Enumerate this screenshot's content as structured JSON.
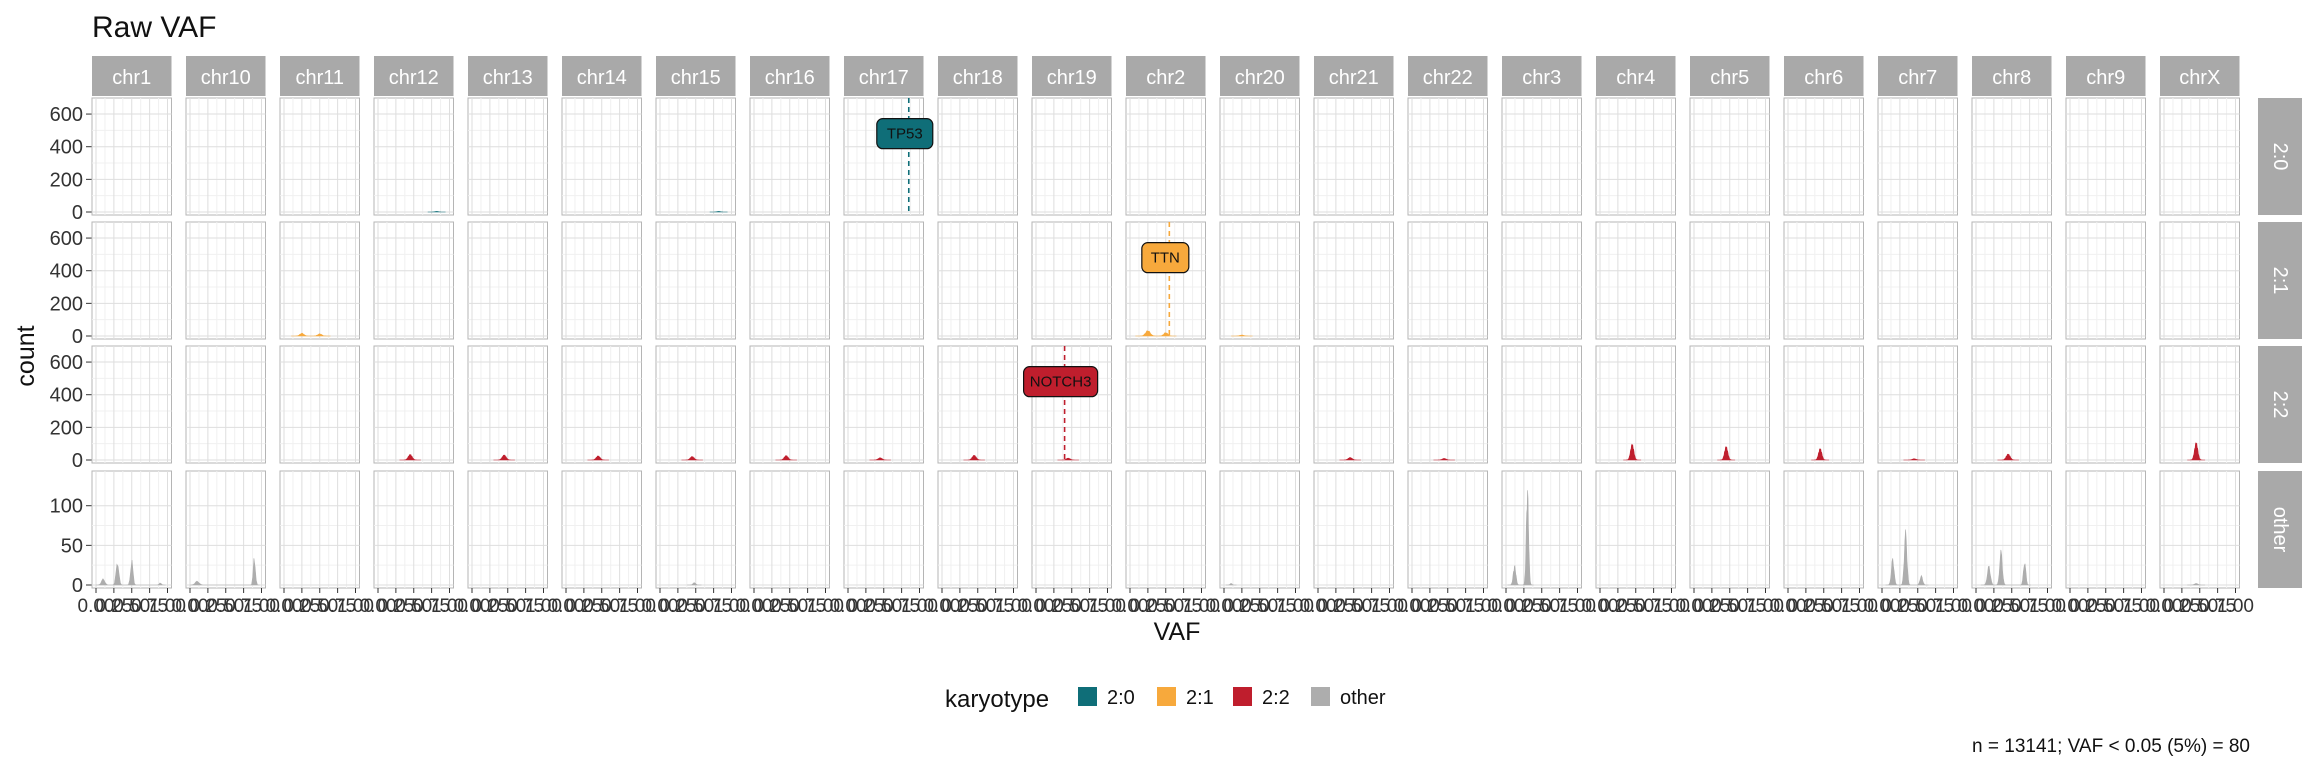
{
  "chart_data": {
    "type": "histogram",
    "title": "Raw VAF",
    "xlabel": "VAF",
    "ylabel": "count",
    "caption": "n = 13141; VAF < 0.05 (5%) = 80",
    "legend": {
      "title": "karyotype",
      "position": "bottom",
      "entries": [
        {
          "label": "2:0",
          "color": "#0f6e78"
        },
        {
          "label": "2:1",
          "color": "#f7a93c"
        },
        {
          "label": "2:2",
          "color": "#bf1e2d"
        },
        {
          "label": "other",
          "color": "#adadad"
        }
      ]
    },
    "columns": [
      "chr1",
      "chr10",
      "chr11",
      "chr12",
      "chr13",
      "chr14",
      "chr15",
      "chr16",
      "chr17",
      "chr18",
      "chr19",
      "chr2",
      "chr20",
      "chr21",
      "chr22",
      "chr3",
      "chr4",
      "chr5",
      "chr6",
      "chr7",
      "chr8",
      "chr9",
      "chrX"
    ],
    "rows": [
      {
        "label": "2:0",
        "color": "#0f6e78",
        "ylim": [
          0,
          680
        ],
        "yticks": [
          "600",
          "400",
          "200",
          "0"
        ],
        "ytick_values": [
          600,
          400,
          200,
          0
        ]
      },
      {
        "label": "2:1",
        "color": "#f7a93c",
        "ylim": [
          0,
          680
        ],
        "yticks": [
          "600",
          "400",
          "200",
          "0"
        ],
        "ytick_values": [
          600,
          400,
          200,
          0
        ]
      },
      {
        "label": "2:2",
        "color": "#bf1e2d",
        "ylim": [
          0,
          680
        ],
        "yticks": [
          "600",
          "400",
          "200",
          "0"
        ],
        "ytick_values": [
          600,
          400,
          200,
          0
        ]
      },
      {
        "label": "other",
        "color": "#adadad",
        "ylim": [
          0,
          140
        ],
        "yticks": [
          "100",
          "50",
          "0"
        ],
        "ytick_values": [
          100,
          50,
          0
        ]
      }
    ],
    "xlim": [
      0,
      1
    ],
    "xtick_values": [
      0,
      0.25,
      0.5,
      0.75,
      1
    ],
    "xtick_labels": [
      "0.00",
      "0.25",
      "0.50",
      "0.75",
      "1.00"
    ],
    "grid": true,
    "panels": [
      {
        "row": 0,
        "col": 3,
        "peaks": [
          {
            "center": 0.82,
            "width": 0.05,
            "height": 4
          }
        ]
      },
      {
        "row": 0,
        "col": 6,
        "peaks": [
          {
            "center": 0.82,
            "width": 0.05,
            "height": 4
          }
        ]
      },
      {
        "row": 1,
        "col": 2,
        "peaks": [
          {
            "center": 0.25,
            "width": 0.06,
            "height": 18
          },
          {
            "center": 0.5,
            "width": 0.06,
            "height": 14
          }
        ]
      },
      {
        "row": 1,
        "col": 11,
        "peaks": [
          {
            "center": 0.25,
            "width": 0.07,
            "height": 35
          },
          {
            "center": 0.5,
            "width": 0.06,
            "height": 22
          }
        ]
      },
      {
        "row": 1,
        "col": 12,
        "peaks": [
          {
            "center": 0.25,
            "width": 0.06,
            "height": 6
          }
        ]
      },
      {
        "row": 2,
        "col": 3,
        "peaks": [
          {
            "center": 0.45,
            "width": 0.06,
            "height": 35
          }
        ]
      },
      {
        "row": 2,
        "col": 4,
        "peaks": [
          {
            "center": 0.45,
            "width": 0.06,
            "height": 32
          }
        ]
      },
      {
        "row": 2,
        "col": 5,
        "peaks": [
          {
            "center": 0.45,
            "width": 0.06,
            "height": 26
          }
        ]
      },
      {
        "row": 2,
        "col": 6,
        "peaks": [
          {
            "center": 0.45,
            "width": 0.06,
            "height": 22
          }
        ]
      },
      {
        "row": 2,
        "col": 7,
        "peaks": [
          {
            "center": 0.45,
            "width": 0.06,
            "height": 28
          }
        ]
      },
      {
        "row": 2,
        "col": 8,
        "peaks": [
          {
            "center": 0.45,
            "width": 0.06,
            "height": 14
          }
        ]
      },
      {
        "row": 2,
        "col": 9,
        "peaks": [
          {
            "center": 0.45,
            "width": 0.06,
            "height": 30
          }
        ]
      },
      {
        "row": 2,
        "col": 10,
        "peaks": [
          {
            "center": 0.45,
            "width": 0.06,
            "height": 12
          }
        ]
      },
      {
        "row": 2,
        "col": 13,
        "peaks": [
          {
            "center": 0.45,
            "width": 0.06,
            "height": 16
          }
        ]
      },
      {
        "row": 2,
        "col": 14,
        "peaks": [
          {
            "center": 0.45,
            "width": 0.06,
            "height": 10
          }
        ]
      },
      {
        "row": 2,
        "col": 16,
        "peaks": [
          {
            "center": 0.45,
            "width": 0.05,
            "height": 100
          }
        ]
      },
      {
        "row": 2,
        "col": 17,
        "peaks": [
          {
            "center": 0.45,
            "width": 0.05,
            "height": 85
          }
        ]
      },
      {
        "row": 2,
        "col": 18,
        "peaks": [
          {
            "center": 0.45,
            "width": 0.05,
            "height": 72
          }
        ]
      },
      {
        "row": 2,
        "col": 19,
        "peaks": [
          {
            "center": 0.45,
            "width": 0.06,
            "height": 8
          }
        ]
      },
      {
        "row": 2,
        "col": 20,
        "peaks": [
          {
            "center": 0.45,
            "width": 0.06,
            "height": 38
          }
        ]
      },
      {
        "row": 2,
        "col": 22,
        "peaks": [
          {
            "center": 0.45,
            "width": 0.05,
            "height": 110
          }
        ]
      },
      {
        "row": 3,
        "col": 0,
        "peaks": [
          {
            "center": 0.1,
            "width": 0.05,
            "height": 8
          },
          {
            "center": 0.3,
            "width": 0.04,
            "height": 32
          },
          {
            "center": 0.5,
            "width": 0.035,
            "height": 34
          },
          {
            "center": 0.9,
            "width": 0.03,
            "height": 3
          }
        ]
      },
      {
        "row": 3,
        "col": 1,
        "peaks": [
          {
            "center": 0.1,
            "width": 0.06,
            "height": 5
          },
          {
            "center": 0.9,
            "width": 0.03,
            "height": 40
          }
        ]
      },
      {
        "row": 3,
        "col": 6,
        "peaks": [
          {
            "center": 0.48,
            "width": 0.04,
            "height": 3
          }
        ]
      },
      {
        "row": 3,
        "col": 12,
        "peaks": [
          {
            "center": 0.1,
            "width": 0.03,
            "height": 2
          }
        ]
      },
      {
        "row": 3,
        "col": 15,
        "peaks": [
          {
            "center": 0.12,
            "width": 0.04,
            "height": 25
          },
          {
            "center": 0.3,
            "width": 0.035,
            "height": 125
          }
        ]
      },
      {
        "row": 3,
        "col": 19,
        "peaks": [
          {
            "center": 0.15,
            "width": 0.04,
            "height": 35
          },
          {
            "center": 0.33,
            "width": 0.04,
            "height": 70
          },
          {
            "center": 0.55,
            "width": 0.04,
            "height": 12
          }
        ]
      },
      {
        "row": 3,
        "col": 20,
        "peaks": [
          {
            "center": 0.18,
            "width": 0.045,
            "height": 25
          },
          {
            "center": 0.35,
            "width": 0.04,
            "height": 45
          },
          {
            "center": 0.68,
            "width": 0.035,
            "height": 32
          }
        ]
      },
      {
        "row": 3,
        "col": 22,
        "peaks": [
          {
            "center": 0.45,
            "width": 0.05,
            "height": 2
          }
        ]
      }
    ],
    "annotations": [
      {
        "label": "TP53",
        "row": 0,
        "col": 8,
        "x": 0.85,
        "y": 480,
        "color": "#0f6e78",
        "text_color": "#111111",
        "line": "dashed"
      },
      {
        "label": "TTN",
        "row": 1,
        "col": 11,
        "x": 0.55,
        "y": 480,
        "color": "#f7a93c",
        "text_color": "#111111",
        "line": "dashed"
      },
      {
        "label": "NOTCH3",
        "row": 2,
        "col": 10,
        "x": 0.4,
        "y": 480,
        "color": "#bf1e2d",
        "text_color": "#111111",
        "line": "dashed"
      }
    ]
  }
}
